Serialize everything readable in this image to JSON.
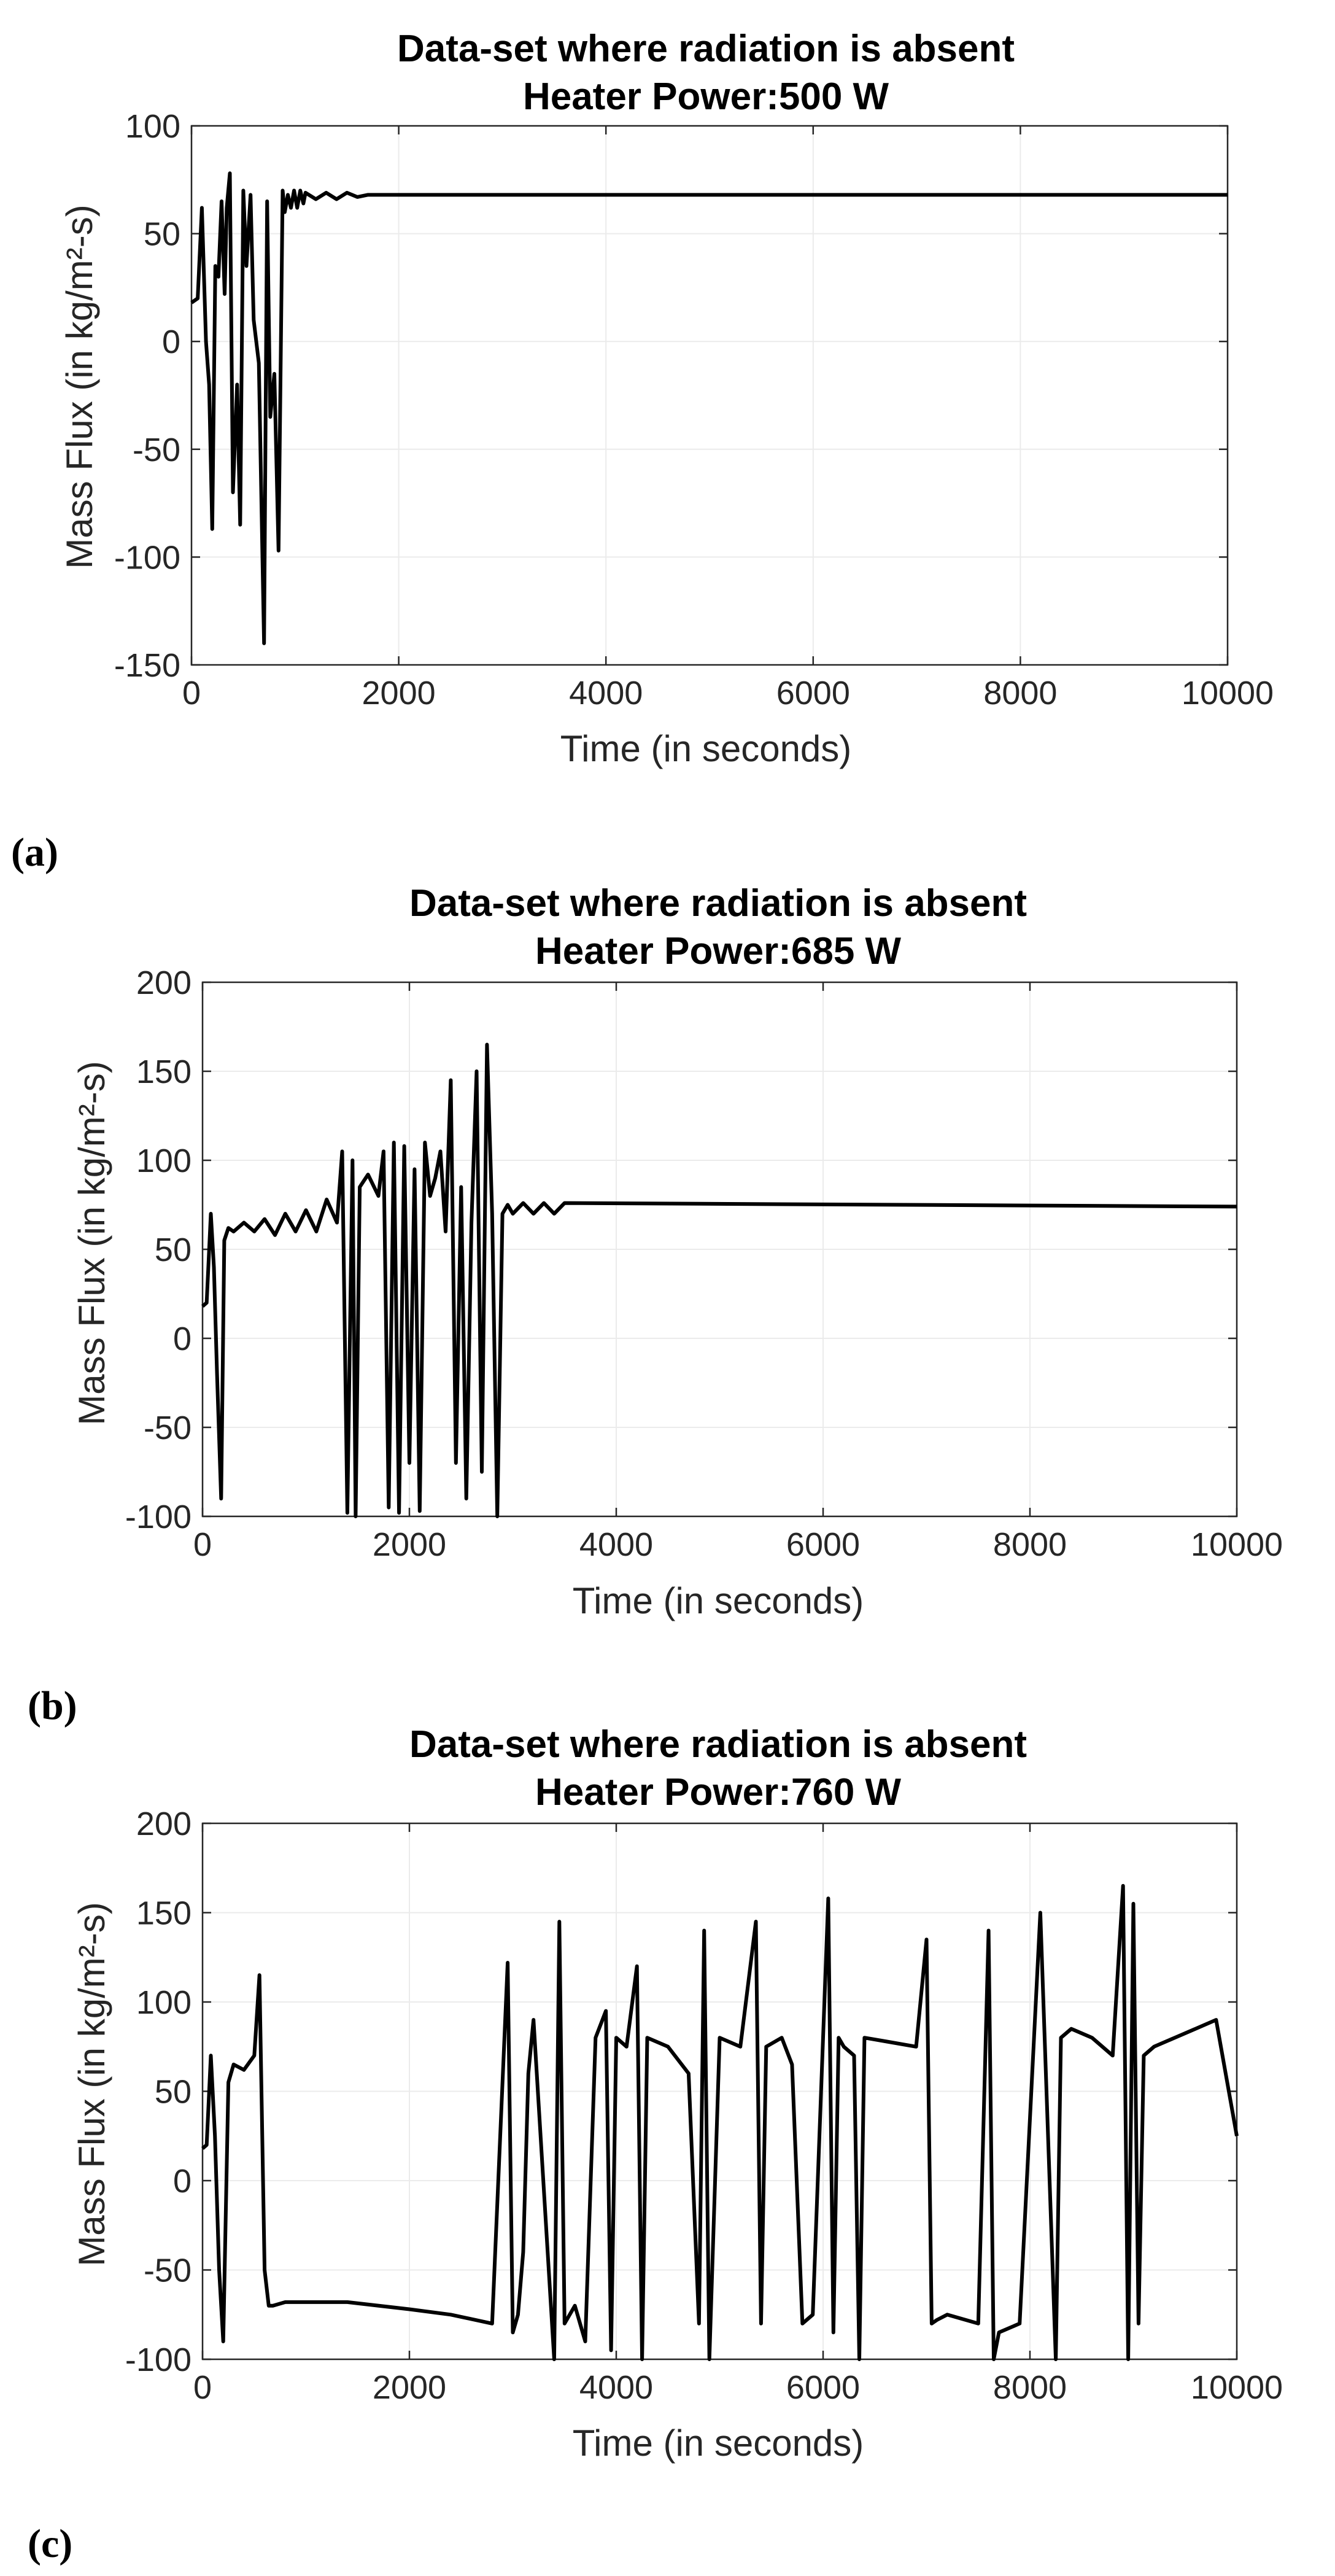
{
  "chart_data": [
    {
      "type": "line",
      "panel_label": "(a)",
      "title_line1": "Data-set where radiation is absent",
      "title_line2": "Heater Power:500 W",
      "xlabel": "Time (in seconds)",
      "ylabel": "Mass Flux (in kg/m²-s)",
      "xlim": [
        0,
        10000
      ],
      "ylim": [
        -150,
        100
      ],
      "xticks": [
        0,
        2000,
        4000,
        6000,
        8000,
        10000
      ],
      "yticks": [
        100,
        50,
        0,
        -50,
        -100,
        -150
      ],
      "grid": true,
      "series": [
        {
          "name": "Mass Flux",
          "x": [
            0,
            60,
            100,
            140,
            170,
            200,
            230,
            260,
            290,
            320,
            340,
            370,
            400,
            440,
            470,
            500,
            530,
            570,
            600,
            650,
            700,
            730,
            760,
            800,
            840,
            880,
            900,
            930,
            960,
            990,
            1020,
            1050,
            1080,
            1100,
            1200,
            1300,
            1400,
            1500,
            1600,
            1700,
            1800,
            10000
          ],
          "y": [
            18,
            20,
            62,
            0,
            -20,
            -87,
            35,
            30,
            65,
            22,
            62,
            78,
            -70,
            -20,
            -85,
            70,
            35,
            68,
            10,
            -10,
            -140,
            65,
            -35,
            -15,
            -97,
            70,
            60,
            68,
            62,
            70,
            62,
            70,
            64,
            69,
            66,
            69,
            66,
            69,
            67,
            68,
            68,
            68
          ]
        }
      ]
    },
    {
      "type": "line",
      "panel_label": "(b)",
      "title_line1": "Data-set where radiation is absent",
      "title_line2": "Heater Power:685 W",
      "xlabel": "Time (in seconds)",
      "ylabel": "Mass Flux (in kg/m²-s)",
      "xlim": [
        0,
        10000
      ],
      "ylim": [
        -100,
        200
      ],
      "xticks": [
        0,
        2000,
        4000,
        6000,
        8000,
        10000
      ],
      "yticks": [
        200,
        150,
        100,
        50,
        0,
        -50,
        -100
      ],
      "grid": true,
      "series": [
        {
          "name": "Mass Flux",
          "x": [
            0,
            40,
            80,
            110,
            140,
            180,
            210,
            250,
            300,
            400,
            500,
            600,
            700,
            800,
            900,
            1000,
            1100,
            1200,
            1300,
            1350,
            1400,
            1450,
            1480,
            1520,
            1600,
            1700,
            1750,
            1800,
            1850,
            1900,
            1950,
            2000,
            2050,
            2100,
            2150,
            2200,
            2250,
            2300,
            2350,
            2400,
            2450,
            2500,
            2550,
            2600,
            2650,
            2700,
            2750,
            2800,
            2850,
            2900,
            2950,
            3000,
            3100,
            3200,
            3300,
            3400,
            3500,
            10000
          ],
          "y": [
            18,
            20,
            70,
            40,
            -20,
            -90,
            55,
            62,
            60,
            65,
            60,
            67,
            58,
            70,
            60,
            72,
            60,
            78,
            65,
            105,
            -98,
            100,
            -100,
            85,
            92,
            80,
            105,
            -95,
            110,
            -98,
            108,
            -70,
            95,
            -97,
            110,
            80,
            90,
            105,
            60,
            145,
            -70,
            85,
            -90,
            65,
            150,
            -75,
            165,
            70,
            -100,
            70,
            75,
            70,
            76,
            70,
            76,
            70,
            76,
            74
          ]
        }
      ]
    },
    {
      "type": "line",
      "panel_label": "(c)",
      "title_line1": "Data-set where radiation is absent",
      "title_line2": "Heater Power:760 W",
      "xlabel": "Time (in seconds)",
      "ylabel": "Mass Flux (in kg/m²-s)",
      "xlim": [
        0,
        10000
      ],
      "ylim": [
        -100,
        200
      ],
      "xticks": [
        0,
        2000,
        4000,
        6000,
        8000,
        10000
      ],
      "yticks": [
        200,
        150,
        100,
        50,
        0,
        -50,
        -100
      ],
      "grid": true,
      "series": [
        {
          "name": "Mass Flux",
          "x": [
            0,
            40,
            80,
            120,
            160,
            200,
            250,
            300,
            400,
            500,
            550,
            600,
            640,
            680,
            800,
            1000,
            1400,
            2000,
            2400,
            2800,
            2950,
            3000,
            3050,
            3100,
            3150,
            3200,
            3400,
            3450,
            3500,
            3600,
            3700,
            3800,
            3900,
            3950,
            4000,
            4100,
            4200,
            4250,
            4300,
            4500,
            4700,
            4800,
            4850,
            4900,
            5000,
            5200,
            5350,
            5400,
            5450,
            5600,
            5700,
            5800,
            5900,
            6050,
            6100,
            6150,
            6200,
            6300,
            6350,
            6400,
            6600,
            6900,
            7000,
            7050,
            7100,
            7200,
            7500,
            7600,
            7650,
            7700,
            7900,
            8100,
            8250,
            8300,
            8400,
            8600,
            8800,
            8900,
            8950,
            9000,
            9050,
            9100,
            9200,
            9400,
            9600,
            9800,
            10000
          ],
          "y": [
            18,
            20,
            70,
            25,
            -50,
            -90,
            55,
            65,
            62,
            70,
            115,
            -50,
            -70,
            -70,
            -68,
            -68,
            -68,
            -72,
            -75,
            -80,
            122,
            -85,
            -75,
            -40,
            60,
            90,
            -100,
            145,
            -80,
            -70,
            -90,
            80,
            95,
            -95,
            80,
            75,
            120,
            -100,
            80,
            75,
            60,
            -80,
            140,
            -100,
            80,
            75,
            145,
            -80,
            75,
            80,
            65,
            -80,
            -75,
            158,
            -85,
            80,
            75,
            70,
            -100,
            80,
            78,
            75,
            135,
            -80,
            -78,
            -75,
            -80,
            140,
            -100,
            -85,
            -80,
            150,
            -100,
            80,
            85,
            80,
            70,
            165,
            -100,
            155,
            -80,
            70,
            75,
            80,
            85,
            90,
            25
          ]
        }
      ]
    }
  ]
}
